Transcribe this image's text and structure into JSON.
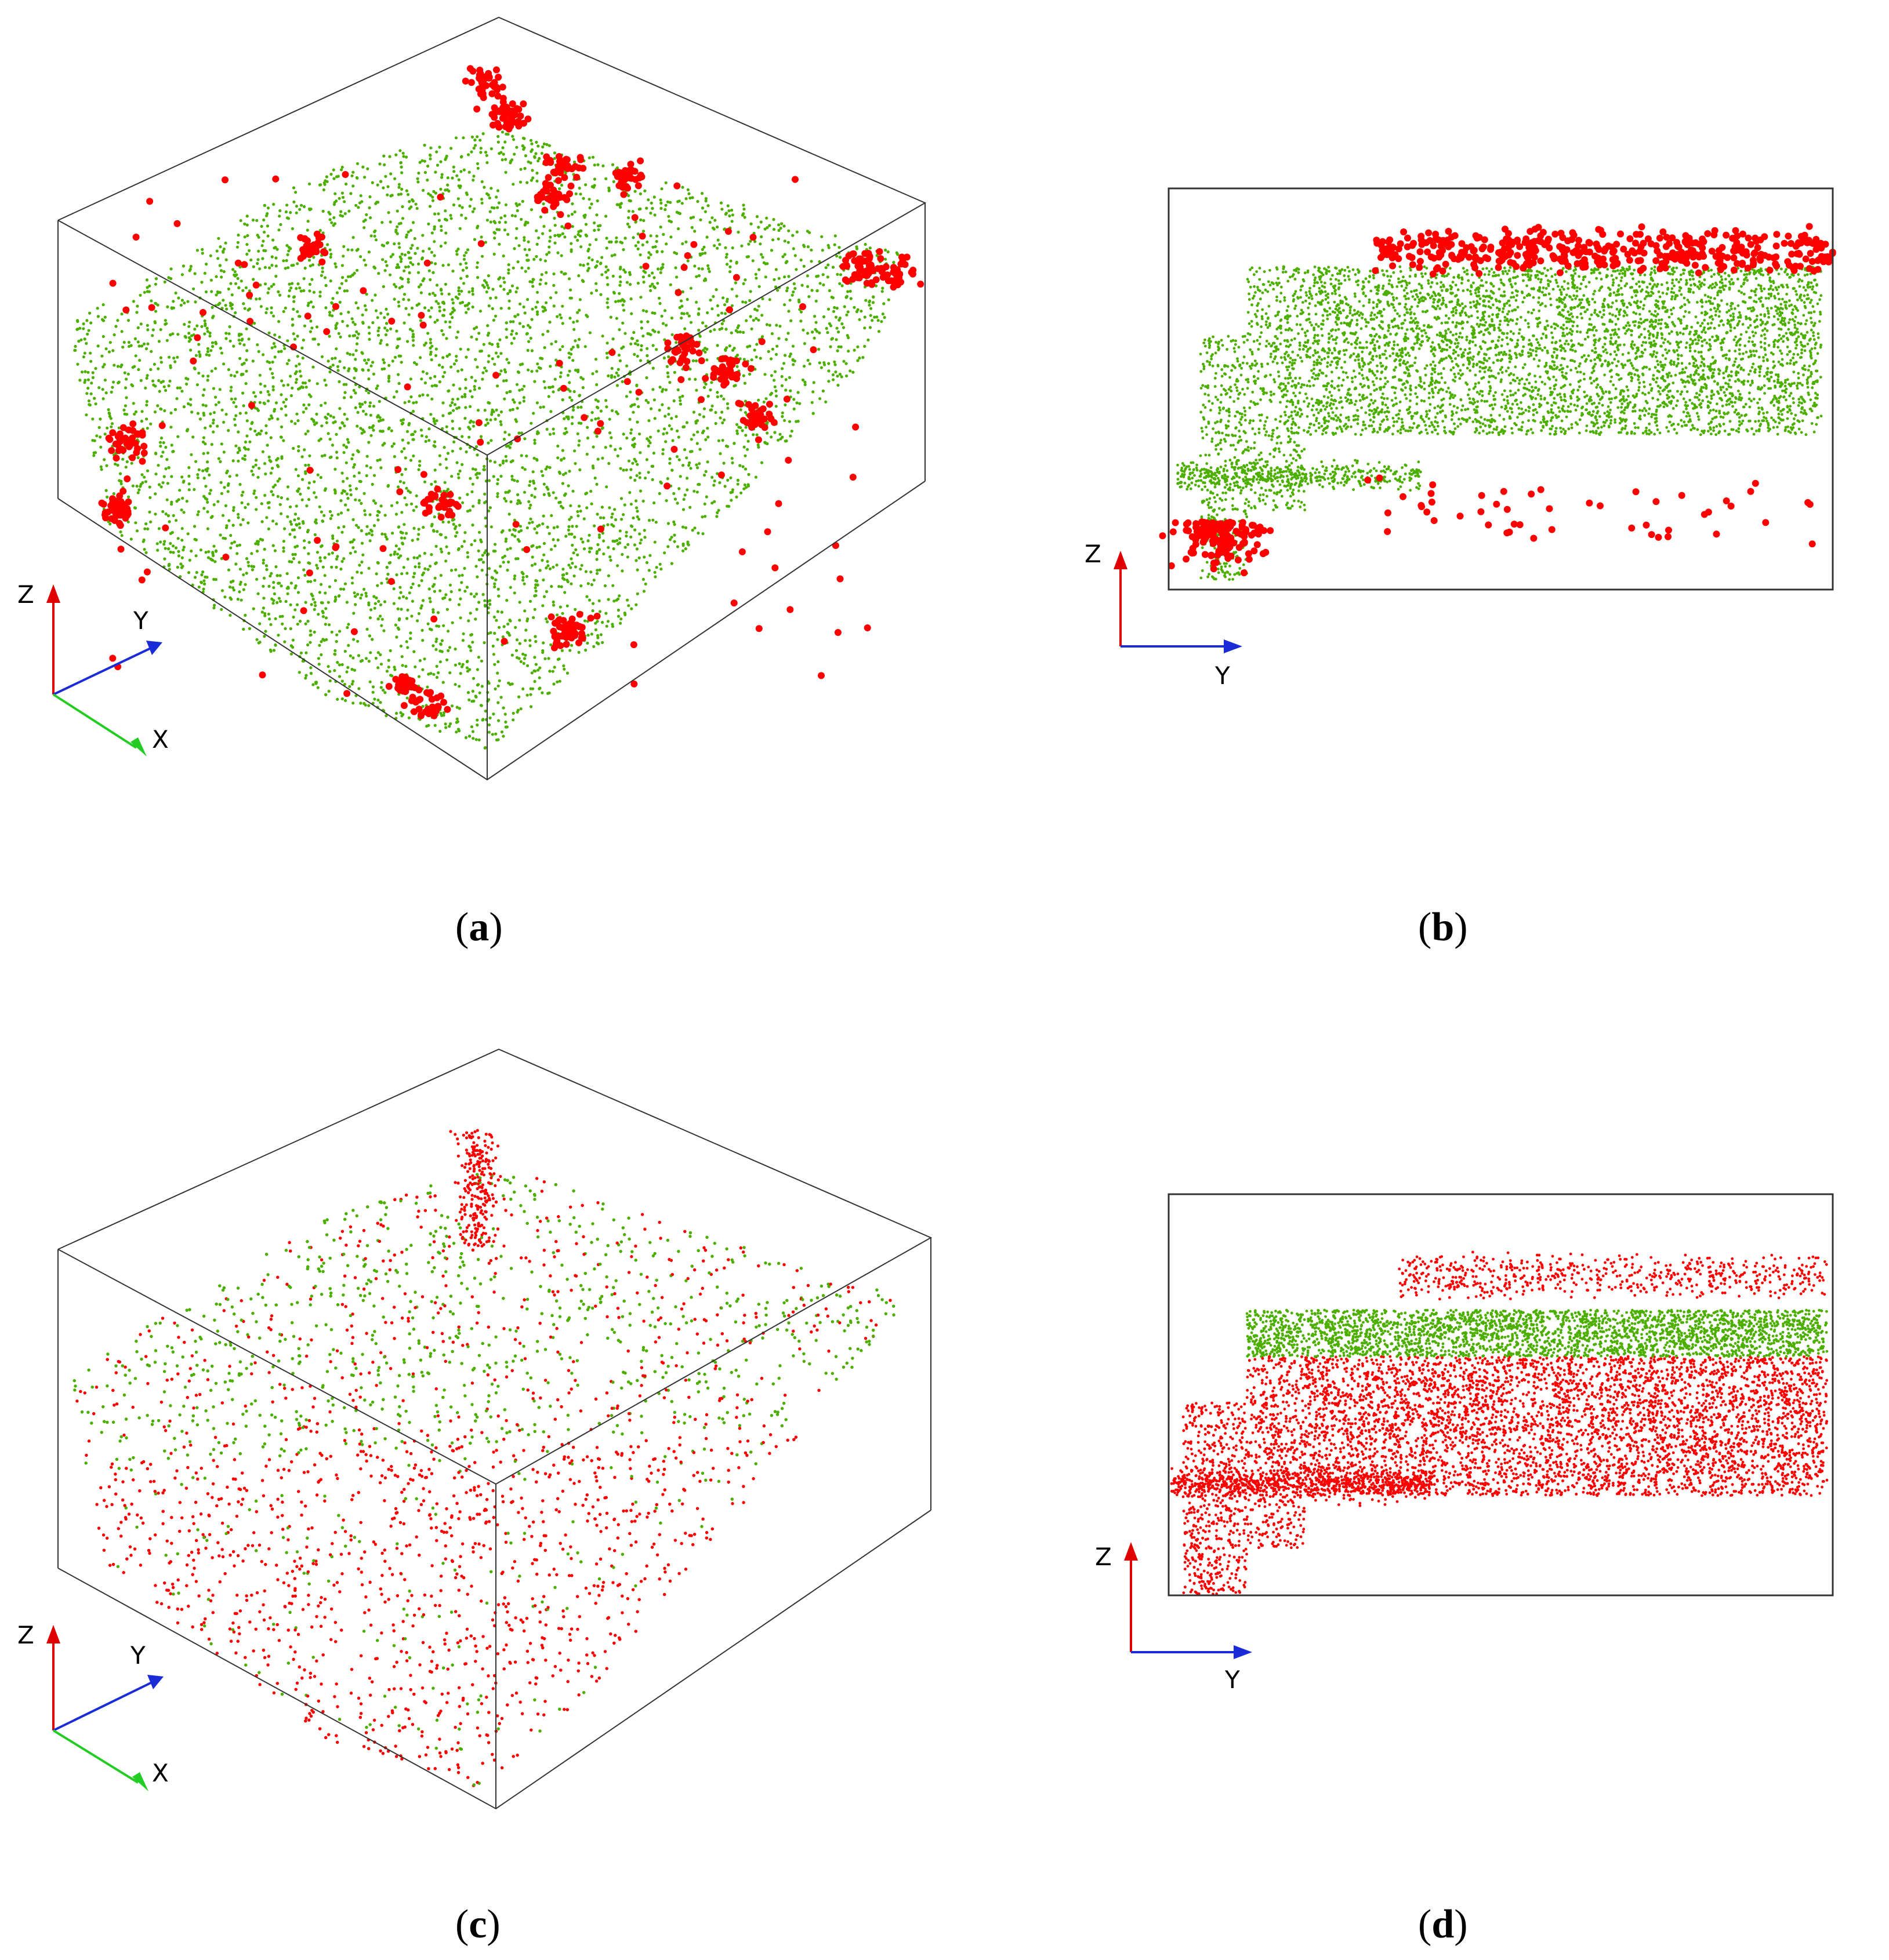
{
  "figure": {
    "colors": {
      "green": "#4caf00",
      "red": "#ff0000",
      "frame": "#333333",
      "axis_z": "#e00000",
      "axis_y": "#1a2bd8",
      "axis_x": "#22cc22"
    },
    "panels": [
      {
        "id": "a",
        "caption_open": "(",
        "caption_letter": "a",
        "caption_close": ")",
        "view": "3d",
        "axes": {
          "z": "Z",
          "y": "Y",
          "x": "X"
        },
        "description": "3D point cloud, mostly green points with red clusters"
      },
      {
        "id": "b",
        "caption_open": "(",
        "caption_letter": "b",
        "caption_close": ")",
        "view": "side-zy",
        "axes": {
          "z": "Z",
          "y": "Y"
        },
        "description": "Side view: green band with red points above and below"
      },
      {
        "id": "c",
        "caption_open": "(",
        "caption_letter": "c",
        "caption_close": ")",
        "view": "3d",
        "axes": {
          "z": "Z",
          "y": "Y",
          "x": "X"
        },
        "description": "3D point cloud: green points on top layer, red below"
      },
      {
        "id": "d",
        "caption_open": "(",
        "caption_letter": "d",
        "caption_close": ")",
        "view": "side-zy",
        "axes": {
          "z": "Z",
          "y": "Y"
        },
        "description": "Side view: thin green band, red points dominate below"
      }
    ]
  }
}
